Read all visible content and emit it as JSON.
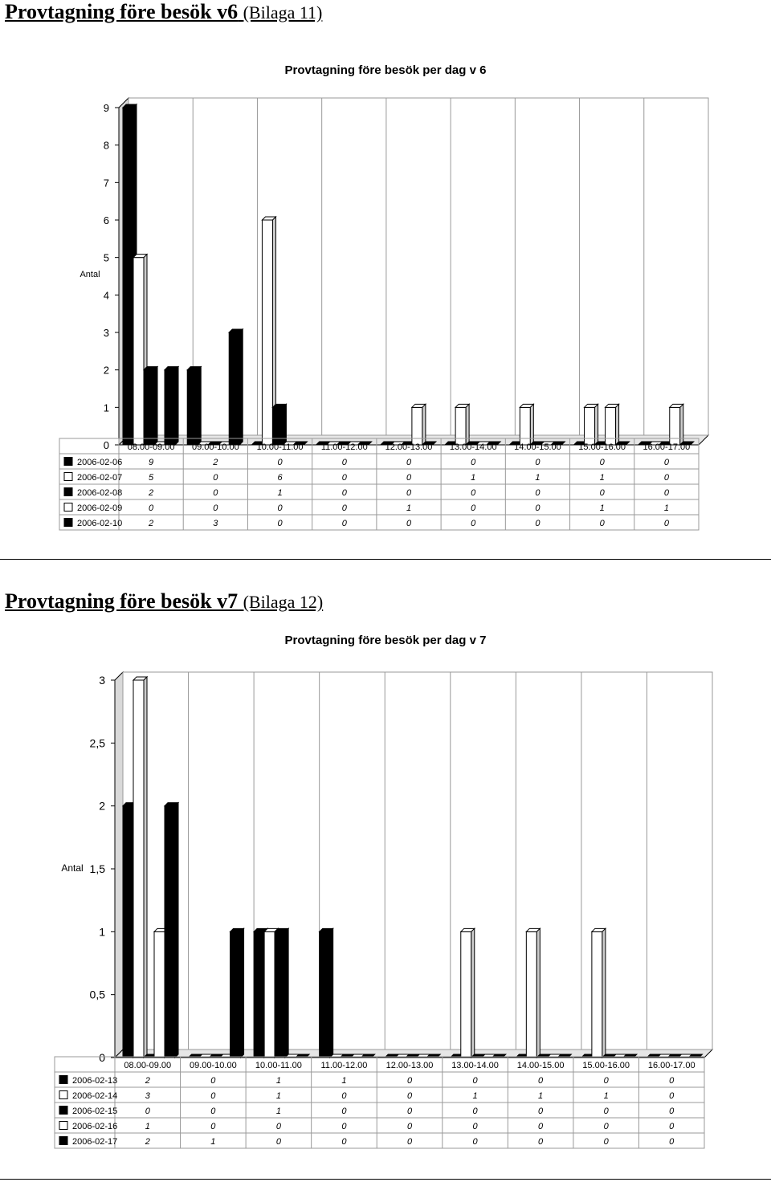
{
  "colors": {
    "dark": "#000000",
    "light": "#ffffff",
    "wall": "#ffffff",
    "frame": "#999999"
  },
  "sections": [
    {
      "heading": "Provtagning före besök v6",
      "subheading": "(Bilaga 11)",
      "chart_data": {
        "type": "bar",
        "title": "Provtagning före besök per dag v 6",
        "ylabel": "Antal",
        "xlabel": "",
        "ylim": [
          0,
          9
        ],
        "yticks": [
          "0",
          "1",
          "2",
          "3",
          "4",
          "5",
          "6",
          "7",
          "8",
          "9"
        ],
        "grid": "vertical",
        "legend": "table-left",
        "categories": [
          "08.00-09.00",
          "09.00-10.00",
          "10.00-11.00",
          "11.00-12.00",
          "12.00-13.00",
          "13.00-14.00",
          "14.00-15.00",
          "15.00-16.00",
          "16.00-17.00"
        ],
        "series": [
          {
            "name": "2006-02-06",
            "fill": "dark",
            "values": [
              9,
              2,
              0,
              0,
              0,
              0,
              0,
              0,
              0
            ]
          },
          {
            "name": "2006-02-07",
            "fill": "light",
            "values": [
              5,
              0,
              6,
              0,
              0,
              1,
              1,
              1,
              0
            ]
          },
          {
            "name": "2006-02-08",
            "fill": "dark",
            "values": [
              2,
              0,
              1,
              0,
              0,
              0,
              0,
              0,
              0
            ]
          },
          {
            "name": "2006-02-09",
            "fill": "light",
            "values": [
              0,
              0,
              0,
              0,
              1,
              0,
              0,
              1,
              1
            ]
          },
          {
            "name": "2006-02-10",
            "fill": "dark",
            "values": [
              2,
              3,
              0,
              0,
              0,
              0,
              0,
              0,
              0
            ]
          }
        ]
      }
    },
    {
      "heading": "Provtagning före besök v7",
      "subheading": "(Bilaga 12)",
      "chart_data": {
        "type": "bar",
        "title": "Provtagning före besök per dag v 7",
        "ylabel": "Antal",
        "xlabel": "",
        "ylim": [
          0,
          3
        ],
        "yticks": [
          "0",
          "0,5",
          "1",
          "1,5",
          "2",
          "2,5",
          "3"
        ],
        "grid": "vertical",
        "legend": "table-left",
        "categories": [
          "08.00-09.00",
          "09.00-10.00",
          "10.00-11.00",
          "11.00-12.00",
          "12.00-13.00",
          "13.00-14.00",
          "14.00-15.00",
          "15.00-16.00",
          "16.00-17.00"
        ],
        "series": [
          {
            "name": "2006-02-13",
            "fill": "dark",
            "values": [
              2,
              0,
              1,
              1,
              0,
              0,
              0,
              0,
              0
            ]
          },
          {
            "name": "2006-02-14",
            "fill": "light",
            "values": [
              3,
              0,
              1,
              0,
              0,
              1,
              1,
              1,
              0
            ]
          },
          {
            "name": "2006-02-15",
            "fill": "dark",
            "values": [
              0,
              0,
              1,
              0,
              0,
              0,
              0,
              0,
              0
            ]
          },
          {
            "name": "2006-02-16",
            "fill": "light",
            "values": [
              1,
              0,
              0,
              0,
              0,
              0,
              0,
              0,
              0
            ]
          },
          {
            "name": "2006-02-17",
            "fill": "dark",
            "values": [
              2,
              1,
              0,
              0,
              0,
              0,
              0,
              0,
              0
            ]
          }
        ]
      }
    }
  ]
}
